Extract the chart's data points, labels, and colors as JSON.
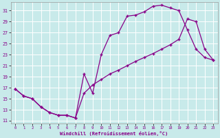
{
  "xlabel": "Windchill (Refroidissement éolien,°C)",
  "ylabel_ticks": [
    11,
    13,
    15,
    17,
    19,
    21,
    23,
    25,
    27,
    29,
    31
  ],
  "xlabel_ticks": [
    0,
    1,
    2,
    3,
    4,
    5,
    6,
    7,
    8,
    9,
    10,
    11,
    12,
    13,
    14,
    15,
    16,
    17,
    18,
    19,
    20,
    21,
    22,
    23
  ],
  "xlim": [
    -0.5,
    23.5
  ],
  "ylim": [
    10.5,
    32.5
  ],
  "bg_color": "#c8eaea",
  "line_color": "#880088",
  "grid_color": "#aadddd",
  "line1_x": [
    0,
    1,
    2,
    3,
    4,
    5,
    6,
    7,
    8,
    9,
    10,
    11,
    12,
    13,
    14,
    15,
    16,
    17,
    18,
    19,
    20,
    21,
    22,
    23
  ],
  "line1_y": [
    16.8,
    15.5,
    15.0,
    13.5,
    12.5,
    12.0,
    12.0,
    11.5,
    19.5,
    16.0,
    23.0,
    26.5,
    27.0,
    30.0,
    30.2,
    30.8,
    31.8,
    32.0,
    31.5,
    31.0,
    27.5,
    24.0,
    22.5,
    22.0
  ],
  "line2_x": [
    0,
    1,
    2,
    3,
    4,
    5,
    6,
    7,
    8,
    9,
    10,
    11,
    12,
    13,
    14,
    15,
    16,
    17,
    18,
    19,
    20,
    21,
    22,
    23
  ],
  "line2_y": [
    16.8,
    15.5,
    15.0,
    13.5,
    12.5,
    12.0,
    12.0,
    11.5,
    16.0,
    17.5,
    18.5,
    19.5,
    20.2,
    21.0,
    21.8,
    22.5,
    23.2,
    24.0,
    24.8,
    25.8,
    29.5,
    29.0,
    24.0,
    22.0
  ]
}
